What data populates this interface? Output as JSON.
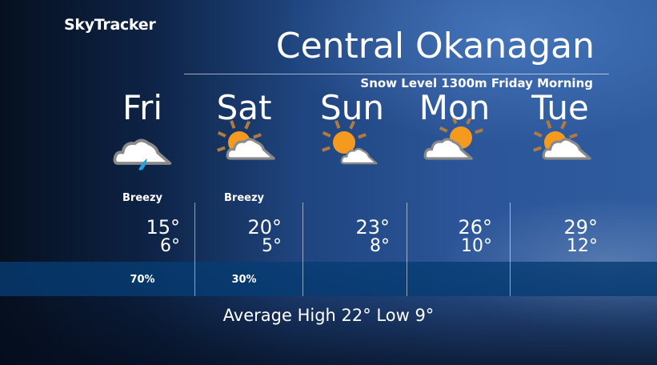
{
  "brand": "SkyTracker",
  "title": "Central Okanagan",
  "subtitle": "Snow Level 1300m Friday Morning",
  "days": [
    {
      "name": "Fri",
      "icon": "cloud-rain-icon",
      "condition": "Breezy",
      "high": "15°",
      "low": "6°",
      "pop": "70%"
    },
    {
      "name": "Sat",
      "icon": "sun-cloud-icon",
      "condition": "Breezy",
      "high": "20°",
      "low": "5°",
      "pop": "30%"
    },
    {
      "name": "Sun",
      "icon": "sun-small-cloud-icon",
      "condition": "",
      "high": "23°",
      "low": "8°",
      "pop": ""
    },
    {
      "name": "Mon",
      "icon": "cloud-sun-icon",
      "condition": "",
      "high": "26°",
      "low": "10°",
      "pop": ""
    },
    {
      "name": "Tue",
      "icon": "sun-cloud-icon",
      "condition": "",
      "high": "29°",
      "low": "12°",
      "pop": ""
    }
  ],
  "average": "Average High 22° Low 9°",
  "colors": {
    "sun": "#f39a1f",
    "rays": "#b07a40",
    "cloud_outline": "#8a8a8a",
    "rain": "#1fa3e0",
    "band": "#0a3c72"
  }
}
